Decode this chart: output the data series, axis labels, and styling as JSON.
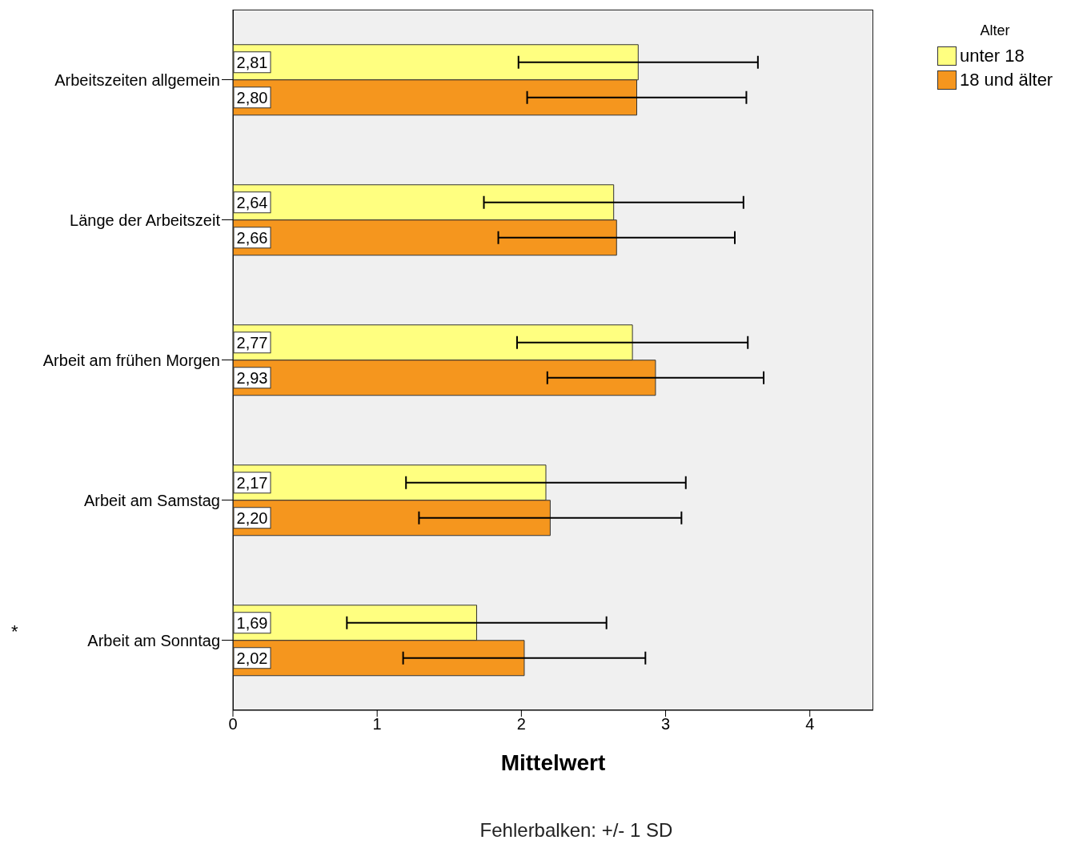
{
  "chart_data": {
    "type": "bar",
    "orientation": "horizontal",
    "xlabel": "Mittelwert",
    "legend_title": "Alter",
    "legend": "top right",
    "grid": false,
    "categories": [
      "Arbeitszeiten allgemein",
      "Länge der Arbeitszeit",
      "Arbeit am frühen Morgen",
      "Arbeit am Samstag",
      "Arbeit am Sonntag"
    ],
    "series": [
      {
        "name": "unter 18",
        "color": "#ffff80",
        "values": [
          2.81,
          2.64,
          2.77,
          2.17,
          1.69
        ],
        "value_labels": [
          "2,81",
          "2,64",
          "2,77",
          "2,17",
          "1,69"
        ],
        "errors": [
          0.83,
          0.9,
          0.8,
          0.97,
          0.9
        ]
      },
      {
        "name": "18 und älter",
        "color": "#f5961e",
        "values": [
          2.8,
          2.66,
          2.93,
          2.2,
          2.02
        ],
        "value_labels": [
          "2,80",
          "2,66",
          "2,93",
          "2,20",
          "2,02"
        ],
        "errors": [
          0.76,
          0.82,
          0.75,
          0.91,
          0.84
        ]
      }
    ],
    "xlim": [
      0,
      4.44
    ],
    "xticks": [
      0,
      1,
      2,
      3,
      4
    ],
    "annotations": [
      "*",
      "Fehlerbalken: +/- 1 SD"
    ]
  }
}
